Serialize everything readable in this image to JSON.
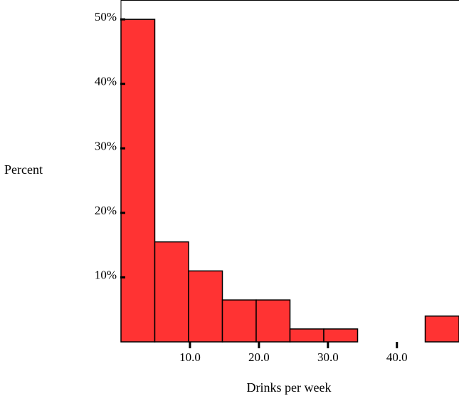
{
  "chart_data": {
    "type": "bar",
    "subtype": "histogram",
    "xlabel": "Drinks per week",
    "ylabel": "Percent",
    "bar_color": "#ff3333",
    "bar_edge_color": "#000000",
    "bin_width": 4.9,
    "xlim": [
      0,
      49
    ],
    "ylim": [
      0,
      53
    ],
    "bins": [
      {
        "start": 0.0,
        "end": 4.9,
        "value": 50.0
      },
      {
        "start": 4.9,
        "end": 9.8,
        "value": 15.5
      },
      {
        "start": 9.8,
        "end": 14.7,
        "value": 11.0
      },
      {
        "start": 14.7,
        "end": 19.6,
        "value": 6.5
      },
      {
        "start": 19.6,
        "end": 24.5,
        "value": 6.5
      },
      {
        "start": 24.5,
        "end": 29.4,
        "value": 2.0
      },
      {
        "start": 29.4,
        "end": 34.3,
        "value": 2.0
      },
      {
        "start": 34.3,
        "end": 39.2,
        "value": 0.0
      },
      {
        "start": 39.2,
        "end": 44.1,
        "value": 0.0
      },
      {
        "start": 44.1,
        "end": 49.0,
        "value": 4.0
      }
    ],
    "x_ticks": [
      {
        "value": 10,
        "label": "10.0"
      },
      {
        "value": 20,
        "label": "20.0"
      },
      {
        "value": 30,
        "label": "30.0"
      },
      {
        "value": 40,
        "label": "40.0"
      }
    ],
    "y_ticks": [
      {
        "value": 10,
        "label": "10%"
      },
      {
        "value": 20,
        "label": "20%"
      },
      {
        "value": 30,
        "label": "30%"
      },
      {
        "value": 40,
        "label": "40%"
      },
      {
        "value": 50,
        "label": "50%"
      }
    ],
    "grid": false,
    "legend": "none"
  }
}
